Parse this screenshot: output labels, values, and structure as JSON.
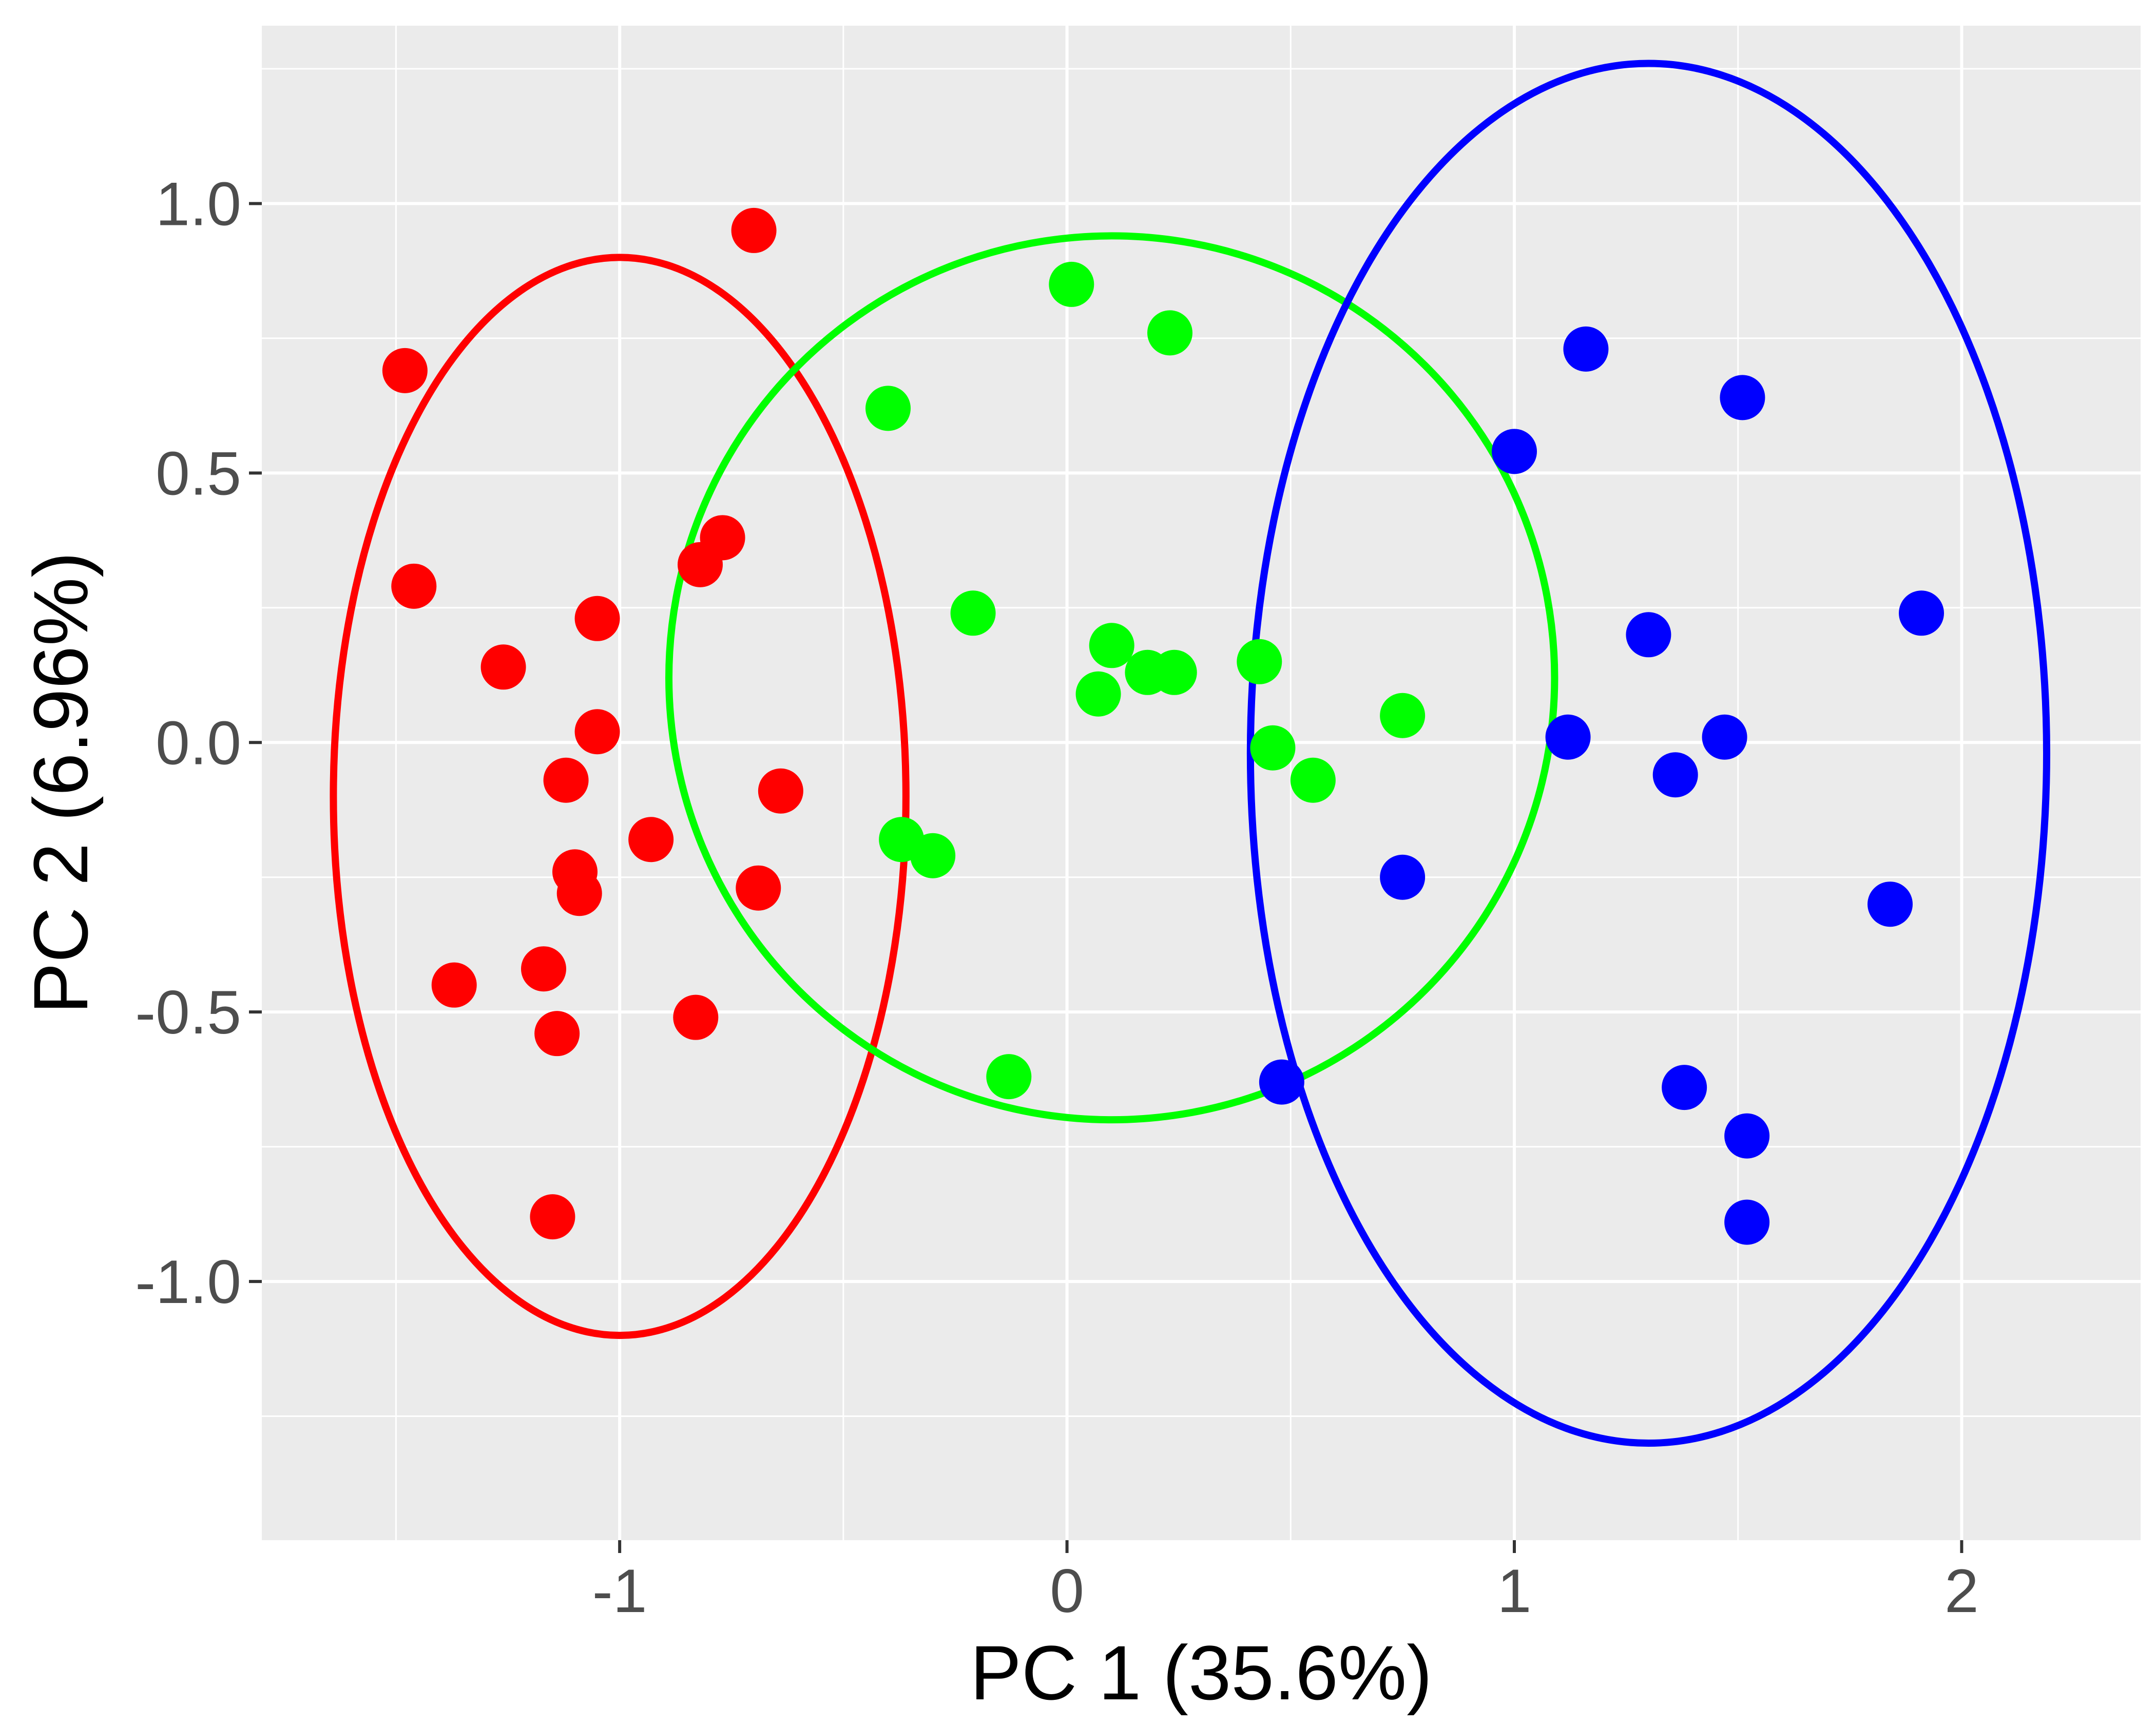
{
  "chart_data": {
    "type": "scatter",
    "title": "",
    "xlabel": "PC 1 (35.6%)",
    "ylabel": "PC 2 (6.96%)",
    "xlim": [
      -1.8,
      2.4
    ],
    "ylim": [
      -1.48,
      1.33
    ],
    "x_ticks": [
      -1,
      0,
      1,
      2
    ],
    "x_tick_labels": [
      "-1",
      "0",
      "1",
      "2"
    ],
    "y_ticks": [
      -1.0,
      -0.5,
      0.0,
      0.5,
      1.0
    ],
    "y_tick_labels": [
      "-1.0",
      "-0.5",
      "0.0",
      "0.5",
      "1.0"
    ],
    "grid": true,
    "legend": "none",
    "background_color": "#ebebeb",
    "series": [
      {
        "color": "#ff0000",
        "points": [
          {
            "x": -1.48,
            "y": 0.69
          },
          {
            "x": -0.7,
            "y": 0.95
          },
          {
            "x": -1.46,
            "y": 0.29
          },
          {
            "x": -0.77,
            "y": 0.38
          },
          {
            "x": -0.82,
            "y": 0.33
          },
          {
            "x": -1.26,
            "y": 0.14
          },
          {
            "x": -1.05,
            "y": 0.23
          },
          {
            "x": -1.05,
            "y": 0.02
          },
          {
            "x": -1.12,
            "y": -0.07
          },
          {
            "x": -0.64,
            "y": -0.09
          },
          {
            "x": -0.93,
            "y": -0.18
          },
          {
            "x": -1.1,
            "y": -0.24
          },
          {
            "x": -1.09,
            "y": -0.28
          },
          {
            "x": -0.69,
            "y": -0.27
          },
          {
            "x": -1.37,
            "y": -0.45
          },
          {
            "x": -1.17,
            "y": -0.42
          },
          {
            "x": -1.14,
            "y": -0.54
          },
          {
            "x": -0.83,
            "y": -0.51
          },
          {
            "x": -1.15,
            "y": -0.88
          }
        ],
        "ellipse": {
          "cx": -1.0,
          "cy": -0.1,
          "rx": 0.64,
          "ry": 1.0
        }
      },
      {
        "color": "#00ff00",
        "points": [
          {
            "x": 0.01,
            "y": 0.85
          },
          {
            "x": 0.23,
            "y": 0.76
          },
          {
            "x": -0.4,
            "y": 0.62
          },
          {
            "x": -0.21,
            "y": 0.24
          },
          {
            "x": 0.1,
            "y": 0.18
          },
          {
            "x": 0.07,
            "y": 0.09
          },
          {
            "x": 0.18,
            "y": 0.13
          },
          {
            "x": 0.24,
            "y": 0.13
          },
          {
            "x": 0.43,
            "y": 0.15
          },
          {
            "x": 0.75,
            "y": 0.05
          },
          {
            "x": 0.46,
            "y": -0.01
          },
          {
            "x": 0.55,
            "y": -0.07
          },
          {
            "x": -0.37,
            "y": -0.18
          },
          {
            "x": -0.3,
            "y": -0.21
          },
          {
            "x": -0.13,
            "y": -0.62
          }
        ],
        "ellipse": {
          "cx": 0.1,
          "cy": 0.12,
          "rx": 0.99,
          "ry": 0.82
        }
      },
      {
        "color": "#0000ff",
        "points": [
          {
            "x": 1.16,
            "y": 0.73
          },
          {
            "x": 1.51,
            "y": 0.64
          },
          {
            "x": 1.0,
            "y": 0.54
          },
          {
            "x": 1.91,
            "y": 0.24
          },
          {
            "x": 1.3,
            "y": 0.2
          },
          {
            "x": 1.12,
            "y": 0.01
          },
          {
            "x": 1.47,
            "y": 0.01
          },
          {
            "x": 1.36,
            "y": -0.06
          },
          {
            "x": 0.75,
            "y": -0.25
          },
          {
            "x": 1.84,
            "y": -0.3
          },
          {
            "x": 0.48,
            "y": -0.63
          },
          {
            "x": 1.38,
            "y": -0.64
          },
          {
            "x": 1.52,
            "y": -0.73
          },
          {
            "x": 1.52,
            "y": -0.89
          }
        ],
        "ellipse": {
          "cx": 1.3,
          "cy": -0.02,
          "rx": 0.89,
          "ry": 1.28
        }
      }
    ]
  }
}
